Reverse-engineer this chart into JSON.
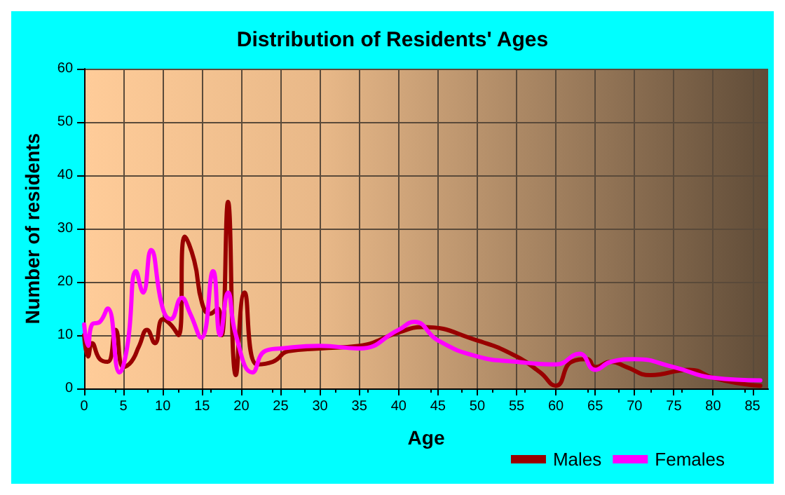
{
  "chart_data": {
    "type": "line",
    "title": "Distribution of Residents' Ages",
    "xlabel": "Age",
    "ylabel": "Number of residents",
    "xlim": [
      0,
      87
    ],
    "xticks": [
      0,
      5,
      10,
      15,
      20,
      25,
      30,
      35,
      40,
      45,
      50,
      55,
      60,
      65,
      70,
      75,
      80,
      85
    ],
    "ylim": [
      0,
      60
    ],
    "yticks": [
      0,
      10,
      20,
      30,
      40,
      50,
      60
    ],
    "grid": true,
    "legend": "bottom right",
    "series": [
      {
        "name": "Males",
        "color": "#990000",
        "x": [
          0,
          0.5,
          1,
          2,
          3,
          4,
          5,
          6,
          7,
          8,
          9,
          10,
          11,
          12,
          12.8,
          14,
          15,
          16,
          17,
          17.5,
          18.3,
          19.3,
          20.4,
          22,
          24,
          26,
          30,
          35,
          40,
          43,
          50,
          55,
          58,
          60,
          62,
          64,
          65,
          67,
          69,
          72,
          77,
          80,
          83,
          86
        ],
        "values": [
          10,
          6,
          8.5,
          5.5,
          5,
          11,
          4,
          5,
          8,
          11,
          8.5,
          13,
          12,
          10,
          28.5,
          24,
          16,
          14,
          15,
          10,
          35,
          2.5,
          18,
          4.5,
          5,
          7,
          7.5,
          8,
          10.5,
          11.5,
          9,
          6,
          3,
          0.5,
          5,
          5.5,
          4,
          5,
          4,
          2.5,
          3.5,
          2,
          1,
          0.5
        ]
      },
      {
        "name": "Females",
        "color": "#ff00ff",
        "x": [
          0,
          0.5,
          1,
          2,
          3,
          4.5,
          5.5,
          6.6,
          7.5,
          8.5,
          10,
          11,
          12.4,
          13.5,
          14.9,
          16.4,
          17.3,
          18.3,
          19.3,
          21.4,
          23,
          25,
          30,
          35,
          40,
          42,
          45,
          50,
          55,
          60,
          63,
          65,
          67,
          70,
          75,
          80,
          86
        ],
        "values": [
          12,
          8,
          12,
          12.5,
          15,
          3,
          8,
          22,
          18,
          26,
          15,
          13,
          17,
          14,
          9.5,
          22,
          10,
          18,
          10,
          3,
          7,
          7.5,
          8,
          7.5,
          11,
          12.5,
          9,
          6,
          5,
          4.5,
          6.5,
          3.5,
          5,
          5.5,
          4,
          2,
          1.5
        ]
      }
    ]
  }
}
